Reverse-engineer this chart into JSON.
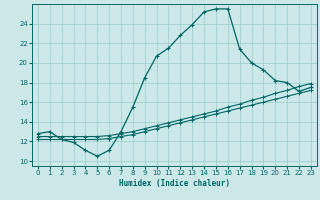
{
  "title": "",
  "xlabel": "Humidex (Indice chaleur)",
  "bg_color": "#cce8e8",
  "grid_color": "#99cccc",
  "line_color": "#006666",
  "xlim": [
    -0.5,
    23.5
  ],
  "ylim": [
    9.5,
    26.0
  ],
  "xticks": [
    0,
    1,
    2,
    3,
    4,
    5,
    6,
    7,
    8,
    9,
    10,
    11,
    12,
    13,
    14,
    15,
    16,
    17,
    18,
    19,
    20,
    21,
    22,
    23
  ],
  "yticks": [
    10,
    12,
    14,
    16,
    18,
    20,
    22,
    24
  ],
  "line1_x": [
    0,
    1,
    2,
    3,
    4,
    5,
    6,
    7,
    8,
    9,
    10,
    11,
    12,
    13,
    14,
    15,
    16,
    17,
    18,
    19,
    20,
    21,
    22,
    23
  ],
  "line1_y": [
    12.8,
    13.0,
    12.2,
    11.9,
    11.1,
    10.5,
    11.1,
    13.0,
    15.5,
    18.5,
    20.7,
    21.5,
    22.8,
    23.9,
    25.2,
    25.5,
    25.5,
    21.4,
    20.0,
    19.3,
    18.2,
    18.0,
    17.1,
    17.5
  ],
  "line2_x": [
    0,
    1,
    2,
    3,
    4,
    5,
    6,
    7,
    8,
    9,
    10,
    11,
    12,
    13,
    14,
    15,
    16,
    17,
    18,
    19,
    20,
    21,
    22,
    23
  ],
  "line2_y": [
    12.5,
    12.5,
    12.5,
    12.5,
    12.5,
    12.5,
    12.6,
    12.8,
    13.0,
    13.3,
    13.6,
    13.9,
    14.2,
    14.5,
    14.8,
    15.1,
    15.5,
    15.8,
    16.2,
    16.5,
    16.9,
    17.2,
    17.6,
    17.9
  ],
  "line3_x": [
    0,
    1,
    2,
    3,
    4,
    5,
    6,
    7,
    8,
    9,
    10,
    11,
    12,
    13,
    14,
    15,
    16,
    17,
    18,
    19,
    20,
    21,
    22,
    23
  ],
  "line3_y": [
    12.2,
    12.2,
    12.2,
    12.2,
    12.2,
    12.2,
    12.3,
    12.5,
    12.7,
    13.0,
    13.3,
    13.6,
    13.9,
    14.2,
    14.5,
    14.8,
    15.1,
    15.4,
    15.7,
    16.0,
    16.3,
    16.6,
    16.9,
    17.2
  ]
}
